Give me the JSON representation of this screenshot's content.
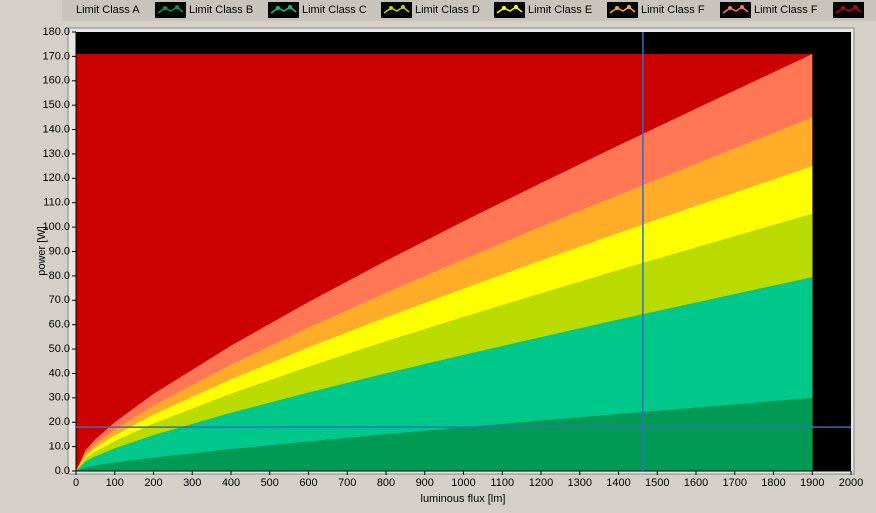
{
  "chart_data": {
    "type": "area",
    "x_label": "luminous flux [lm]",
    "y_label": "power [W]",
    "x": [
      0,
      25,
      50,
      100,
      200,
      400,
      600,
      800,
      1000,
      1200,
      1400,
      1600,
      1900
    ],
    "series": [
      {
        "name": "Limit Class A",
        "color": "#009a55",
        "values": [
          0,
          1.5,
          2.3,
          3.5,
          5.5,
          9,
          12.1,
          15.1,
          17.9,
          20.7,
          23.4,
          26,
          30
        ]
      },
      {
        "name": "Limit Class B",
        "color": "#00c78a",
        "values": [
          0,
          4,
          6,
          9.3,
          14.7,
          23.9,
          32.2,
          40.1,
          47.6,
          54.9,
          62.1,
          69.1,
          79.5
        ]
      },
      {
        "name": "Limit Class C",
        "color": "#b9db00",
        "values": [
          0,
          5.3,
          8,
          12.3,
          19.5,
          31.7,
          42.8,
          53.2,
          63.2,
          72.9,
          82.4,
          91.7,
          105.5
        ]
      },
      {
        "name": "Limit Class D",
        "color": "#ffff00",
        "values": [
          0,
          6.3,
          9.5,
          14.6,
          23.1,
          37.6,
          50.7,
          63,
          74.8,
          86.3,
          97.6,
          108.7,
          125
        ]
      },
      {
        "name": "Limit Class E",
        "color": "#ffad29",
        "values": [
          0,
          7.3,
          11,
          17,
          26.8,
          43.6,
          58.8,
          73.1,
          86.8,
          100.2,
          113.2,
          126,
          145
        ]
      },
      {
        "name": "Limit Class F",
        "color": "#ff7755",
        "values": [
          0,
          8.6,
          13,
          20,
          31.6,
          51.4,
          69.3,
          86.2,
          102.4,
          118.1,
          133.5,
          148.6,
          171
        ]
      },
      {
        "name": "Limit Class F",
        "color": "#cc0000",
        "values": [
          171,
          171,
          171,
          171,
          171,
          171,
          171,
          171,
          171,
          171,
          171,
          171,
          171
        ]
      }
    ],
    "xlim": [
      0,
      2000
    ],
    "xticks": [
      0,
      100,
      200,
      300,
      400,
      500,
      600,
      700,
      800,
      900,
      1000,
      1100,
      1200,
      1300,
      1400,
      1500,
      1600,
      1700,
      1800,
      1900,
      2000
    ],
    "ylim": [
      0,
      180
    ],
    "yticks": [
      {
        "value": 0,
        "label": "0.0"
      },
      {
        "value": 10,
        "label": "10.0"
      },
      {
        "value": 20,
        "label": "20.0"
      },
      {
        "value": 30,
        "label": "30.0"
      },
      {
        "value": 40,
        "label": "40.0"
      },
      {
        "value": 50,
        "label": "50.0"
      },
      {
        "value": 60,
        "label": "60.0"
      },
      {
        "value": 70,
        "label": "70.0"
      },
      {
        "value": 80,
        "label": "80.0"
      },
      {
        "value": 90,
        "label": "90.0"
      },
      {
        "value": 100,
        "label": "100.0"
      },
      {
        "value": 110,
        "label": "110.0"
      },
      {
        "value": 120,
        "label": "120.0"
      },
      {
        "value": 130,
        "label": "130.0"
      },
      {
        "value": 140,
        "label": "140.0"
      },
      {
        "value": 150,
        "label": "150.0"
      },
      {
        "value": 160,
        "label": "160.0"
      },
      {
        "value": 170,
        "label": "170.0"
      },
      {
        "value": 180,
        "label": "180.0"
      }
    ],
    "cursor": {
      "x": 1463,
      "y": 18,
      "color": "#2f6fc0"
    },
    "plot_background": "#000000"
  }
}
